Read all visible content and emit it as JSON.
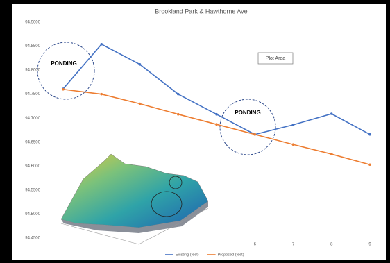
{
  "chart_data": {
    "type": "line",
    "title": "Brookland Park & Hawthorne Ave",
    "categories": [
      null,
      null,
      null,
      null,
      null,
      "6",
      "7",
      "8",
      "9"
    ],
    "series": [
      {
        "name": "Existing (feet)",
        "color": "#4472c4",
        "values": [
          94.761,
          94.854,
          94.812,
          94.75,
          94.708,
          94.666,
          94.686,
          94.709,
          94.666
        ]
      },
      {
        "name": "Proposed (feet)",
        "color": "#ed7d31",
        "values": [
          94.76,
          94.75,
          94.73,
          94.708,
          94.687,
          94.666,
          94.645,
          94.625,
          94.603
        ]
      }
    ],
    "ylim": [
      94.45,
      94.9
    ],
    "yticks": [
      {
        "value": 94.45,
        "label": "94.4500"
      },
      {
        "value": 94.5,
        "label": "94.5000"
      },
      {
        "value": 94.55,
        "label": "94.5500"
      },
      {
        "value": 94.6,
        "label": "94.6000"
      },
      {
        "value": 94.65,
        "label": "94.6500"
      },
      {
        "value": 94.7,
        "label": "94.7000"
      },
      {
        "value": 94.75,
        "label": "94.7500"
      },
      {
        "value": 94.8,
        "label": "94.8000"
      },
      {
        "value": 94.85,
        "label": "94.8500"
      },
      {
        "value": 94.9,
        "label": "94.9000"
      }
    ],
    "grid": false,
    "legend": "bottom",
    "annotations": [
      "PONDING",
      "PONDING",
      "Plot Area"
    ]
  }
}
